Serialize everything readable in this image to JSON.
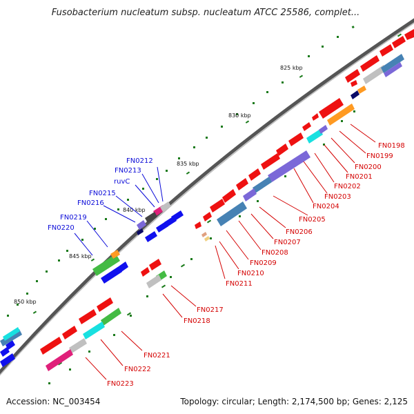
{
  "map": {
    "title": "Fusobacterium nucleatum subsp. nucleatum ATCC 25586, complet...",
    "ticks": [
      "825 kbp",
      "830 kbp",
      "835 kbp",
      "840 kbp",
      "845 kbp",
      "850 kbp"
    ],
    "labels_reverse": [
      "FN0198",
      "FN0199",
      "FN0200",
      "FN0201",
      "FN0202",
      "FN0203",
      "FN0204",
      "FN0205",
      "FN0206",
      "FN0207",
      "FN0208",
      "FN0209",
      "FN0210",
      "FN0211",
      "FN0217",
      "FN0218",
      "FN0221",
      "FN0222",
      "FN0223"
    ],
    "labels_forward": [
      "FN0212",
      "FN0213",
      "ruvC",
      "FN0215",
      "FN0216",
      "FN0219",
      "FN0220"
    ],
    "colors": {
      "backbone": "#666666",
      "cds_reverse": "#ee1111",
      "cds_forward": "#1010ee",
      "cog_purple": "#7b68d8",
      "cog_steel": "#4682b4",
      "cog_cyan": "#18e0e0",
      "cog_green": "#44bb44",
      "cog_pink": "#e0207a",
      "cog_orange": "#ff9a22",
      "cog_gray": "#c0c0c0",
      "cog_navy": "#0a0a66",
      "gc_tick": "#1a7a1a",
      "label_reverse": "#d40000",
      "label_forward": "#0a0ad8"
    }
  },
  "footer": {
    "accession": "Accession: NC_003454",
    "summary": "Topology: circular; Length: 2,174,500 bp; Genes: 2,125"
  }
}
